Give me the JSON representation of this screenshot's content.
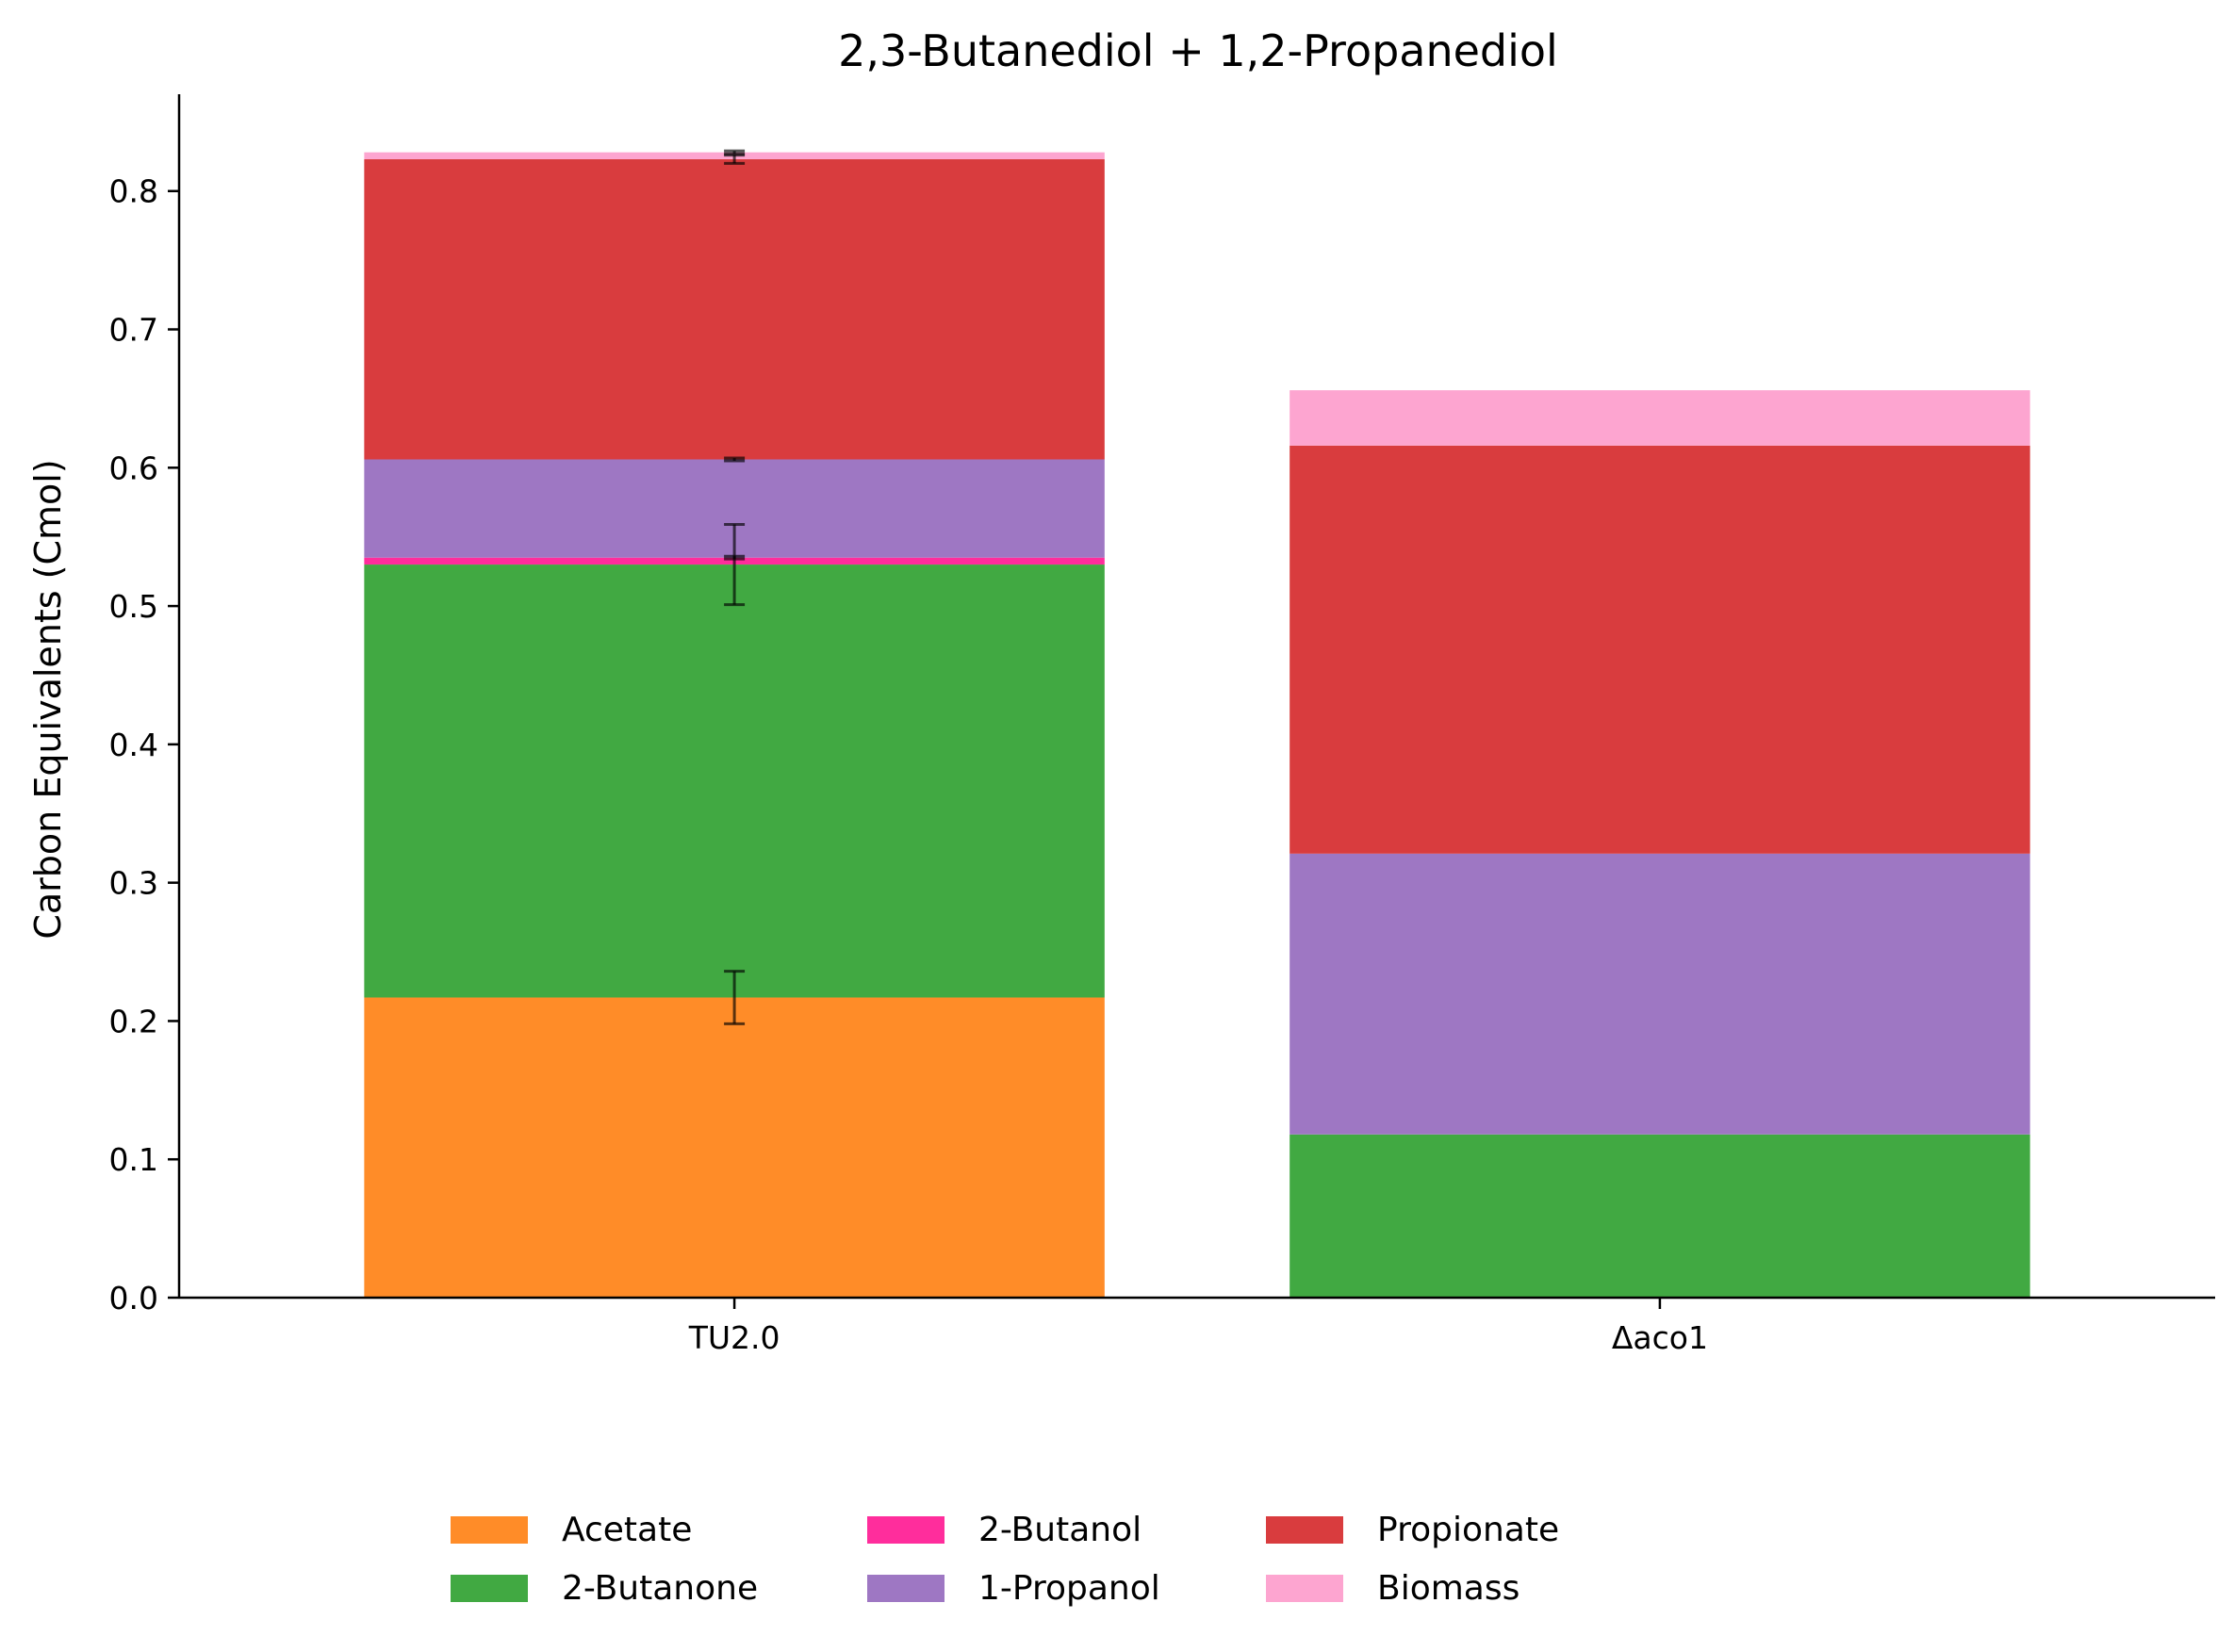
{
  "chart_data": {
    "type": "bar",
    "stacked": true,
    "title": "2,3-Butanediol + 1,2-Propanediol",
    "xlabel": "",
    "ylabel": "Carbon Equivalents (Cmol)",
    "ylim": [
      0,
      0.87
    ],
    "yticks": [
      0.0,
      0.1,
      0.2,
      0.3,
      0.4,
      0.5,
      0.6,
      0.7,
      0.8
    ],
    "ytick_labels": [
      "0.0",
      "0.1",
      "0.2",
      "0.3",
      "0.4",
      "0.5",
      "0.6",
      "0.7",
      "0.8"
    ],
    "categories": [
      "TU2.0",
      "Δaco1"
    ],
    "grid": false,
    "legend_position": "bottom-center",
    "series": [
      {
        "name": "Acetate",
        "color": "#ff8c28",
        "values": [
          0.217,
          0.0
        ],
        "errors": [
          0.019,
          null
        ]
      },
      {
        "name": "2-Butanone",
        "color": "#41a942",
        "values": [
          0.313,
          0.118
        ],
        "errors": [
          0.029,
          null
        ]
      },
      {
        "name": "2-Butanol",
        "color": "#ff2d9c",
        "values": [
          0.005,
          0.0
        ],
        "errors": [
          0.001,
          null
        ]
      },
      {
        "name": "1-Propanol",
        "color": "#9e77c3",
        "values": [
          0.071,
          0.203
        ],
        "errors": [
          0.001,
          null
        ]
      },
      {
        "name": "Propionate",
        "color": "#d93c3e",
        "values": [
          0.217,
          0.295
        ],
        "errors": [
          0.003,
          null
        ]
      },
      {
        "name": "Biomass",
        "color": "#fda5d0",
        "values": [
          0.005,
          0.04
        ],
        "errors": [
          0.001,
          null
        ]
      }
    ]
  }
}
